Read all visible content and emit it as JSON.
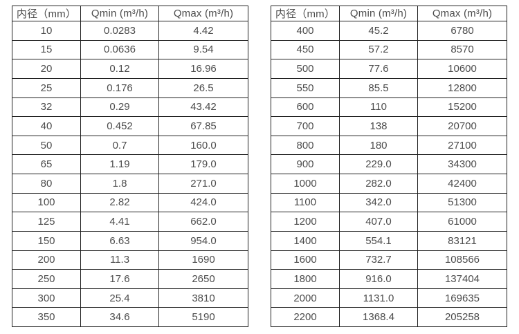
{
  "page": {
    "background": "#ffffff",
    "text_color": "#4c4c4c",
    "border_color": "#1f1f1f",
    "description_labels": {
      "diameter_header": "内径（mm）",
      "qmin_header": "Qmin (m³/h)",
      "qmax_header": "Qmax (m³/h)"
    }
  },
  "chart_data": [
    {
      "type": "table",
      "title": "",
      "columns": [
        "内径（mm）",
        "Qmin (m³/h)",
        "Qmax (m³/h)"
      ],
      "rows": [
        [
          "10",
          "0.0283",
          "4.42"
        ],
        [
          "15",
          "0.0636",
          "9.54"
        ],
        [
          "20",
          "0.12",
          "16.96"
        ],
        [
          "25",
          "0.176",
          "26.5"
        ],
        [
          "32",
          "0.29",
          "43.42"
        ],
        [
          "40",
          "0.452",
          "67.85"
        ],
        [
          "50",
          "0.7",
          "160.0"
        ],
        [
          "65",
          "1.19",
          "179.0"
        ],
        [
          "80",
          "1.8",
          "271.0"
        ],
        [
          "100",
          "2.82",
          "424.0"
        ],
        [
          "125",
          "4.41",
          "662.0"
        ],
        [
          "150",
          "6.63",
          "954.0"
        ],
        [
          "200",
          "11.3",
          "1690"
        ],
        [
          "250",
          "17.6",
          "2650"
        ],
        [
          "300",
          "25.4",
          "3810"
        ],
        [
          "350",
          "34.6",
          "5190"
        ]
      ]
    },
    {
      "type": "table",
      "title": "",
      "columns": [
        "内径（mm）",
        "Qmin (m³/h)",
        "Qmax (m³/h)"
      ],
      "rows": [
        [
          "400",
          "45.2",
          "6780"
        ],
        [
          "450",
          "57.2",
          "8570"
        ],
        [
          "500",
          "77.6",
          "10600"
        ],
        [
          "550",
          "85.5",
          "12800"
        ],
        [
          "600",
          "110",
          "15200"
        ],
        [
          "700",
          "138",
          "20700"
        ],
        [
          "800",
          "180",
          "27100"
        ],
        [
          "900",
          "229.0",
          "34300"
        ],
        [
          "1000",
          "282.0",
          "42400"
        ],
        [
          "1100",
          "342.0",
          "51300"
        ],
        [
          "1200",
          "407.0",
          "61000"
        ],
        [
          "1400",
          "554.1",
          "83121"
        ],
        [
          "1600",
          "732.7",
          "108566"
        ],
        [
          "1800",
          "916.0",
          "137404"
        ],
        [
          "2000",
          "1131.0",
          "169635"
        ],
        [
          "2200",
          "1368.4",
          "205258"
        ]
      ]
    }
  ]
}
